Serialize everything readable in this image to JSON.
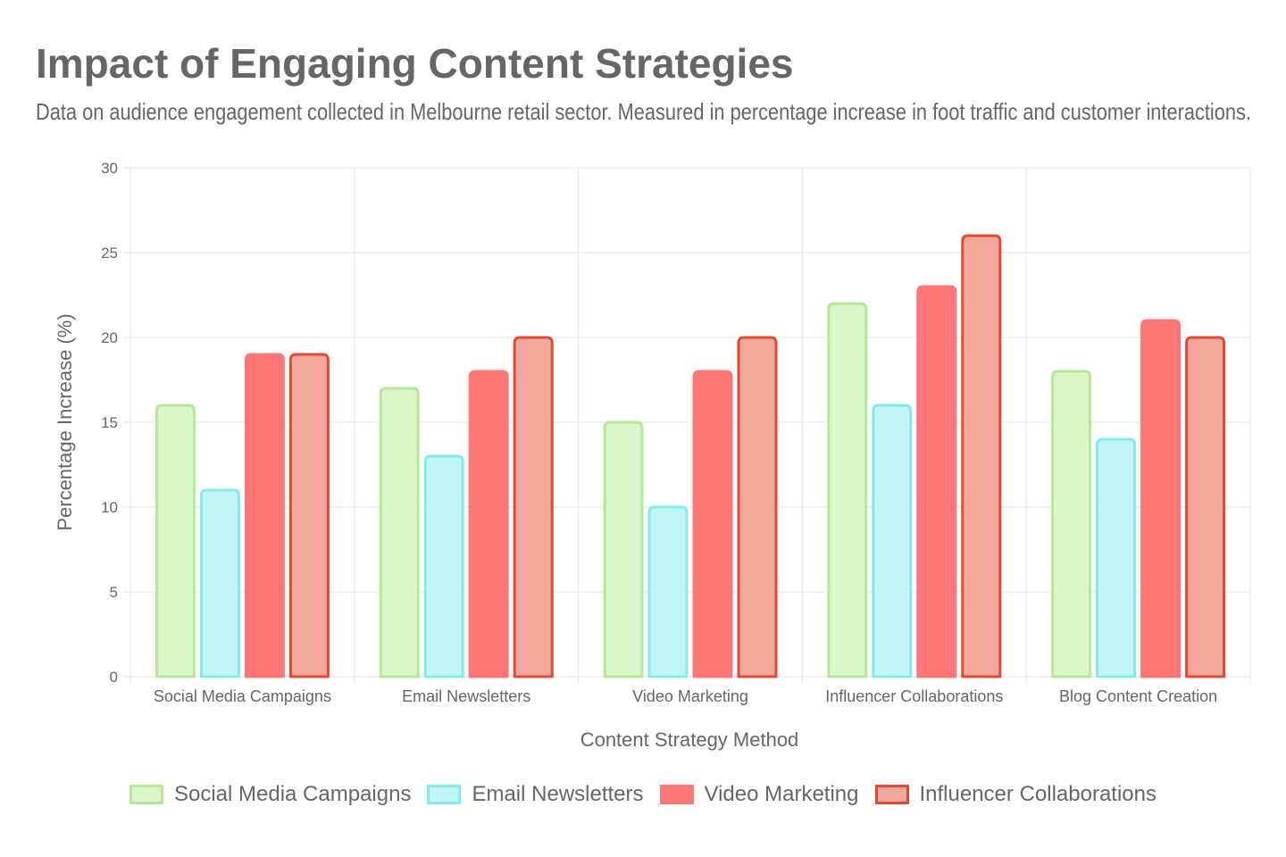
{
  "chart_data": {
    "type": "bar",
    "title": "Impact of Engaging Content Strategies",
    "subtitle": "Data on audience engagement collected in Melbourne retail sector. Measured in percentage increase in foot traffic and customer interactions.",
    "xlabel": "Content Strategy Method",
    "ylabel": "Percentage Increase (%)",
    "ylim": [
      0,
      30
    ],
    "yticks": [
      0,
      5,
      10,
      15,
      20,
      25,
      30
    ],
    "grid": true,
    "legend_position": "bottom",
    "categories": [
      "Social Media Campaigns",
      "Email Newsletters",
      "Video Marketing",
      "Influencer Collaborations",
      "Blog Content Creation"
    ],
    "series": [
      {
        "name": "Social Media Campaigns",
        "values": [
          16,
          17,
          15,
          22,
          18
        ],
        "fill": "#daf5c8",
        "stroke": "#b4e89a"
      },
      {
        "name": "Email Newsletters",
        "values": [
          11,
          13,
          10,
          16,
          14
        ],
        "fill": "#c0f5f5",
        "stroke": "#84eaea"
      },
      {
        "name": "Video Marketing",
        "values": [
          19,
          18,
          18,
          23,
          21
        ],
        "fill": "#ff7676",
        "stroke": "#ff7676"
      },
      {
        "name": "Influencer Collaborations",
        "values": [
          19,
          20,
          20,
          26,
          20
        ],
        "fill": "#f3a69c",
        "stroke": "#e04a35"
      }
    ]
  }
}
